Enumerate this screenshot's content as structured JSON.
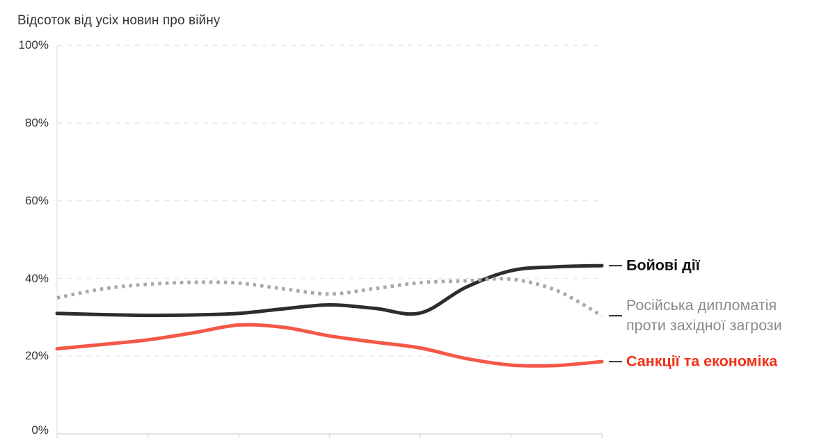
{
  "chart_data": {
    "type": "line",
    "title": "Відсоток від усіх новин про війну",
    "ylabel": "Відсоток від усіх новин про війну",
    "ylim": [
      0,
      100
    ],
    "grid": "horizontal-dashed",
    "background": "#ffffff",
    "x_tick_count": 7,
    "x_tick_labels_visible": false,
    "x": [
      0,
      0.5,
      1,
      1.5,
      2,
      2.5,
      3,
      3.5,
      4,
      4.5,
      5,
      5.5,
      6
    ],
    "series": [
      {
        "key": "combat-actions",
        "name": "Бойові дії",
        "label_lines": [
          "Бойові дії"
        ],
        "style": "solid",
        "line_color": "#2d2d2d",
        "text_color": "#111111",
        "bold_label": true,
        "values": [
          31,
          30.7,
          30.5,
          30.6,
          31,
          32.2,
          33.2,
          32.3,
          31.1,
          37.7,
          42,
          43,
          43.3
        ]
      },
      {
        "key": "russian-diplomacy",
        "name": "Російська дипломатія проти західної загрози",
        "label_lines": [
          "Російська дипломатія",
          "проти західної загрози"
        ],
        "style": "dotted",
        "line_color": "#a8a8a8",
        "text_color": "#8a8a8a",
        "bold_label": false,
        "values": [
          35,
          37.3,
          38.5,
          39,
          38.8,
          37.3,
          36,
          37.4,
          38.9,
          39.4,
          39.8,
          36.9,
          30.4
        ]
      },
      {
        "key": "sanctions-economy",
        "name": "Санкції та економіка",
        "label_lines": [
          "Санкції та економіка"
        ],
        "style": "solid",
        "line_color": "#f55846",
        "text_color": "#ef3117",
        "bold_label": true,
        "values": [
          21.9,
          23,
          24.2,
          26,
          28,
          27.4,
          25.2,
          23.6,
          22.1,
          19.4,
          17.7,
          17.6,
          18.6
        ]
      }
    ]
  },
  "y_axis": {
    "tick_values": [
      100,
      80,
      60,
      40,
      20,
      0
    ],
    "tick_labels": [
      "100%",
      "80%",
      "60%",
      "40%",
      "20%",
      "0%"
    ]
  },
  "colors": {
    "grid_dashed": "#e9e9e9",
    "axis": "#e2e2e2",
    "tick": "#dcdcdc",
    "connector": "#3f3f3f",
    "title_text": "#333333",
    "axis_text": "#333333"
  }
}
